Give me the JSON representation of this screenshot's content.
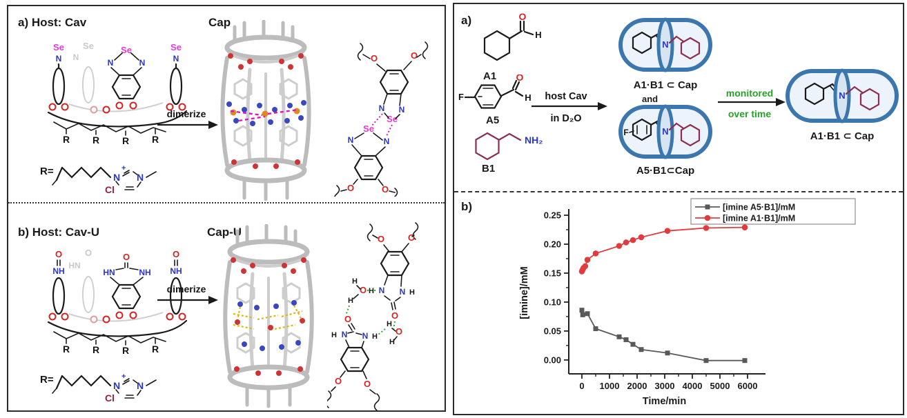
{
  "figure": {
    "left_panel": {
      "section_a": {
        "title": "a) Host: Cav",
        "product_label": "Cap",
        "arrow_label": "dimerize"
      },
      "section_b": {
        "title": "b) Host: Cav-U",
        "product_label": "Cap-U",
        "arrow_label": "dimerize"
      },
      "r_group": {
        "prefix": "R="
      }
    },
    "right_panel": {
      "section_a": {
        "label": "a)",
        "reactants": {
          "a1": "A1",
          "a5": "A5",
          "b1": "B1"
        },
        "arrow_line1": "host Cav",
        "arrow_line2": "in D₂O",
        "capsule1_label": "A1·B1 ⊂ Cap",
        "and_label": "and",
        "capsule2_label": "A5·B1⊂Cap",
        "monitor_line1": "monitored",
        "monitor_line2": "over time",
        "product_label": "A1·B1 ⊂ Cap"
      },
      "section_b": {
        "label": "b)"
      }
    }
  },
  "atoms": {
    "se": "Se",
    "n": "N",
    "o": "O",
    "h": "H",
    "f": "F",
    "r": "R",
    "cl": "Cl",
    "nh2": "NH₂",
    "hn": "HN",
    "nh": "NH",
    "plus": "+"
  },
  "chart_data": {
    "type": "line",
    "title": "",
    "xlabel": "Time/min",
    "ylabel": "[imine]/mM",
    "xlim": [
      -475,
      6450
    ],
    "ylim": [
      -0.024,
      0.256
    ],
    "xticks": [
      0,
      1000,
      2000,
      3000,
      4000,
      5000,
      6000
    ],
    "xticks_minor": [
      500,
      1500,
      2500,
      3500,
      4500,
      5500
    ],
    "yticks": [
      0,
      0.05,
      0.1,
      0.15,
      0.2,
      0.25
    ],
    "yticks_minor": [
      0.025,
      0.075,
      0.125,
      0.175,
      0.225
    ],
    "grid": false,
    "legend_position": "top-right",
    "series": [
      {
        "name": "[imine A5·B1]/mM",
        "marker": "square",
        "color": "#595959",
        "x": [
          0,
          30,
          200,
          500,
          1350,
          1600,
          1850,
          2150,
          3100,
          4500,
          5900
        ],
        "y": [
          0.086,
          0.078,
          0.08,
          0.054,
          0.04,
          0.035,
          0.027,
          0.018,
          0.012,
          -0.001,
          -0.001
        ]
      },
      {
        "name": "[imine A1·B1]/mM",
        "marker": "circle",
        "color": "#e23b3e",
        "x": [
          0,
          30,
          60,
          120,
          200,
          500,
          1350,
          1600,
          1850,
          2150,
          3100,
          4500,
          5900
        ],
        "y": [
          0.153,
          0.156,
          0.159,
          0.162,
          0.173,
          0.184,
          0.197,
          0.203,
          0.207,
          0.212,
          0.223,
          0.228,
          0.229
        ]
      }
    ]
  }
}
